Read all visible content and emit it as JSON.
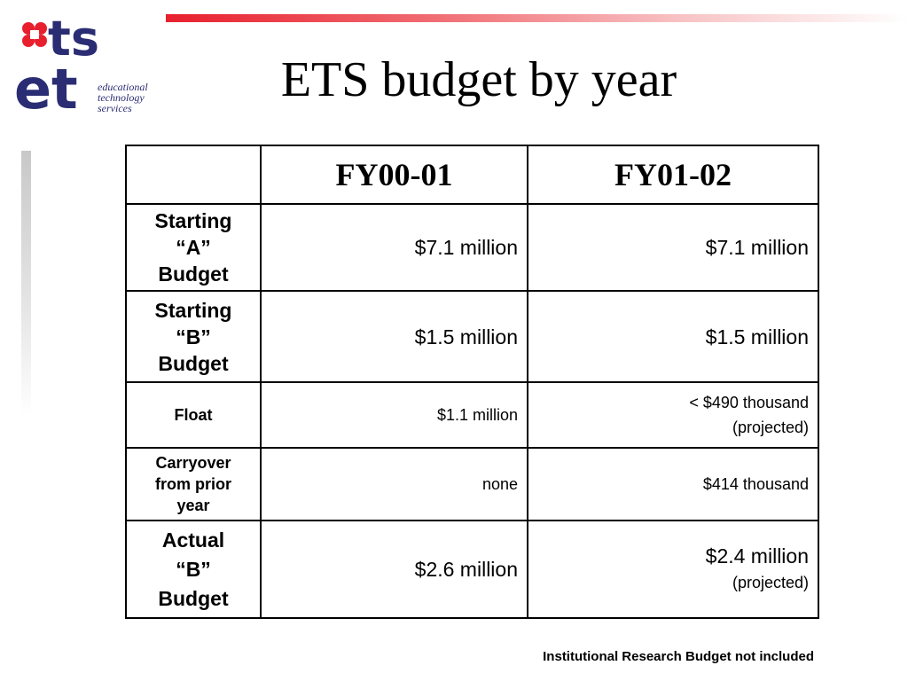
{
  "logo": {
    "mark": "ets",
    "subtitle_lines": [
      "educational",
      "technology",
      "services"
    ],
    "colors": {
      "navy": "#2a2d73",
      "red": "#e8202e"
    }
  },
  "title": "ETS budget by year",
  "table": {
    "columns": [
      "",
      "FY00-01",
      "FY01-02"
    ],
    "rows": [
      {
        "label": [
          "Starting",
          "“A”",
          "Budget"
        ],
        "fy0001": "$7.1 million",
        "fy0102": "$7.1 million",
        "fy0102_note": ""
      },
      {
        "label": [
          "Starting",
          "“B”",
          "Budget"
        ],
        "fy0001": "$1.5 million",
        "fy0102": "$1.5 million",
        "fy0102_note": ""
      },
      {
        "label": [
          "Float"
        ],
        "fy0001": "$1.1 million",
        "fy0102": "< $490 thousand",
        "fy0102_note": "(projected)"
      },
      {
        "label": [
          "Carryover",
          "from prior",
          "year"
        ],
        "fy0001": "none",
        "fy0102": "$414 thousand",
        "fy0102_note": ""
      },
      {
        "label": [
          "Actual",
          "“B”",
          "Budget"
        ],
        "fy0001": "$2.6 million",
        "fy0102": "$2.4 million",
        "fy0102_note": "(projected)"
      }
    ]
  },
  "footnote": "Institutional Research Budget not included"
}
